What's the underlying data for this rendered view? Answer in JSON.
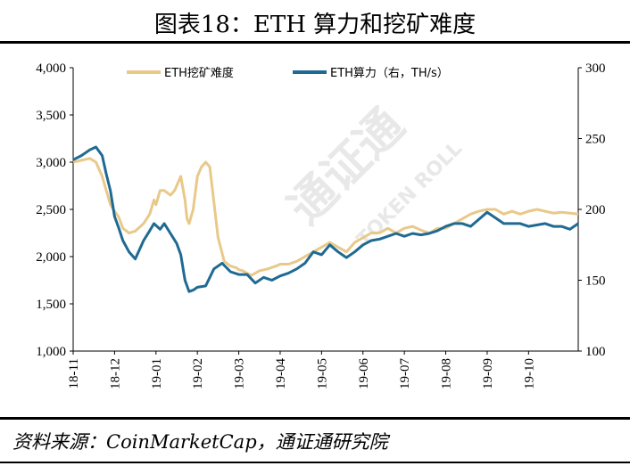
{
  "title": "图表18：ETH 算力和挖矿难度",
  "source": "资料来源：CoinMarketCap，通证通研究院",
  "watermark": {
    "cn": "通证通",
    "en": "TOKEN ROLL"
  },
  "colors": {
    "difficulty": "#E8C98A",
    "hashrate": "#1F6A93",
    "axis": "#000000",
    "rule": "#000000"
  },
  "chart_data": {
    "type": "line",
    "grid": false,
    "legend_position": "top-center",
    "x_ticks": [
      "18-11",
      "18-12",
      "19-01",
      "19-02",
      "19-03",
      "19-04",
      "19-05",
      "19-06",
      "19-07",
      "19-08",
      "19-09",
      "19-10"
    ],
    "y_left": {
      "ticks": [
        "1,000",
        "1,500",
        "2,000",
        "2,500",
        "3,000",
        "3,500",
        "4,000"
      ],
      "range": [
        1000,
        4000
      ]
    },
    "y_right": {
      "ticks": [
        "100",
        "150",
        "200",
        "250",
        "300"
      ],
      "range": [
        100,
        300
      ]
    },
    "x_range_months": [
      0,
      12.2
    ],
    "series": [
      {
        "name": "ETH挖矿难度",
        "axis": "left",
        "x": [
          0,
          0.2,
          0.4,
          0.55,
          0.7,
          0.8,
          0.9,
          1.0,
          1.05,
          1.1,
          1.2,
          1.35,
          1.5,
          1.7,
          1.85,
          1.95,
          2.0,
          2.1,
          2.2,
          2.35,
          2.45,
          2.6,
          2.7,
          2.75,
          2.8,
          2.9,
          3.0,
          3.05,
          3.1,
          3.2,
          3.3,
          3.5,
          3.65,
          3.8,
          3.95,
          4.0,
          4.1,
          4.3,
          4.5,
          4.7,
          4.9,
          5.0,
          5.2,
          5.4,
          5.6,
          5.8,
          6.0,
          6.2,
          6.4,
          6.6,
          6.8,
          7.0,
          7.2,
          7.4,
          7.6,
          7.8,
          8.0,
          8.2,
          8.4,
          8.6,
          8.8,
          9.0,
          9.2,
          9.4,
          9.6,
          9.8,
          10.0,
          10.2,
          10.4,
          10.6,
          10.8,
          11.0,
          11.2,
          11.4,
          11.6,
          11.8,
          12.0,
          12.2
        ],
        "y": [
          3000,
          3020,
          3040,
          3000,
          2850,
          2700,
          2550,
          2480,
          2450,
          2420,
          2300,
          2250,
          2270,
          2350,
          2450,
          2600,
          2550,
          2700,
          2700,
          2650,
          2700,
          2850,
          2600,
          2400,
          2350,
          2500,
          2850,
          2900,
          2950,
          3000,
          2950,
          2200,
          1950,
          1900,
          1880,
          1860,
          1850,
          1800,
          1850,
          1870,
          1900,
          1920,
          1920,
          1950,
          2000,
          2050,
          2100,
          2150,
          2100,
          2050,
          2150,
          2200,
          2250,
          2250,
          2300,
          2250,
          2300,
          2320,
          2280,
          2250,
          2300,
          2300,
          2350,
          2400,
          2450,
          2480,
          2500,
          2500,
          2450,
          2480,
          2450,
          2480,
          2500,
          2480,
          2460,
          2470,
          2460,
          2450
        ]
      },
      {
        "name": "ETH算力（右，TH/s）",
        "axis": "right",
        "x": [
          0,
          0.2,
          0.4,
          0.55,
          0.7,
          0.8,
          0.9,
          1.0,
          1.1,
          1.2,
          1.35,
          1.5,
          1.7,
          1.85,
          1.95,
          2.1,
          2.2,
          2.35,
          2.5,
          2.6,
          2.7,
          2.8,
          2.9,
          3.0,
          3.2,
          3.4,
          3.6,
          3.8,
          4.0,
          4.2,
          4.4,
          4.6,
          4.8,
          5.0,
          5.2,
          5.4,
          5.6,
          5.8,
          6.0,
          6.2,
          6.4,
          6.6,
          6.8,
          7.0,
          7.2,
          7.4,
          7.6,
          7.8,
          8.0,
          8.2,
          8.4,
          8.6,
          8.8,
          9.0,
          9.2,
          9.4,
          9.6,
          9.8,
          10.0,
          10.2,
          10.4,
          10.6,
          10.8,
          11.0,
          11.2,
          11.4,
          11.6,
          11.8,
          12.0,
          12.2
        ],
        "y": [
          235,
          238,
          242,
          244,
          238,
          225,
          213,
          195,
          187,
          178,
          170,
          165,
          178,
          185,
          190,
          186,
          190,
          183,
          176,
          168,
          150,
          142,
          143,
          145,
          146,
          158,
          162,
          156,
          154,
          154,
          148,
          152,
          150,
          153,
          155,
          158,
          162,
          170,
          168,
          175,
          170,
          166,
          170,
          175,
          178,
          179,
          181,
          183,
          181,
          183,
          182,
          183,
          185,
          188,
          190,
          190,
          188,
          193,
          198,
          194,
          190,
          190,
          190,
          188,
          189,
          190,
          188,
          188,
          186,
          190
        ]
      }
    ]
  }
}
